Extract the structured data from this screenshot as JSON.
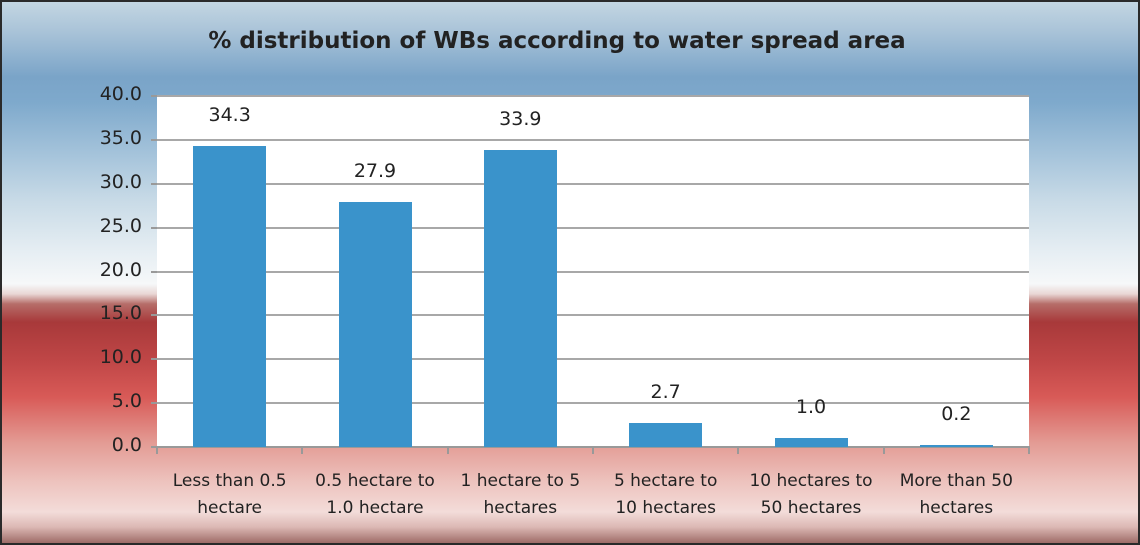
{
  "chart_data": {
    "type": "bar",
    "title": "% distribution of WBs according to water spread area",
    "xlabel": "",
    "ylabel": "",
    "categories": [
      "Less than 0.5 hectare",
      "0.5 hectare to 1.0 hectare",
      "1 hectare to 5 hectares",
      "5 hectare to 10 hectares",
      "10 hectares to 50 hectares",
      "More than 50 hectares"
    ],
    "category_lines": [
      [
        "Less than 0.5",
        "hectare"
      ],
      [
        "0.5 hectare to",
        "1.0 hectare"
      ],
      [
        "1 hectare to 5",
        "hectares"
      ],
      [
        "5 hectare to",
        "10 hectares"
      ],
      [
        "10 hectares to",
        "50 hectares"
      ],
      [
        "More than 50",
        "hectares"
      ]
    ],
    "values": [
      34.3,
      27.9,
      33.9,
      2.7,
      1.0,
      0.2
    ],
    "value_labels": [
      "34.3",
      "27.9",
      "33.9",
      "2.7",
      "1.0",
      "0.2"
    ],
    "ylim": [
      0,
      40
    ],
    "yticks": [
      "0.0",
      "5.0",
      "10.0",
      "15.0",
      "20.0",
      "25.0",
      "30.0",
      "35.0",
      "40.0"
    ],
    "grid": true,
    "legend": "none",
    "bar_color": "#3a93cb"
  }
}
